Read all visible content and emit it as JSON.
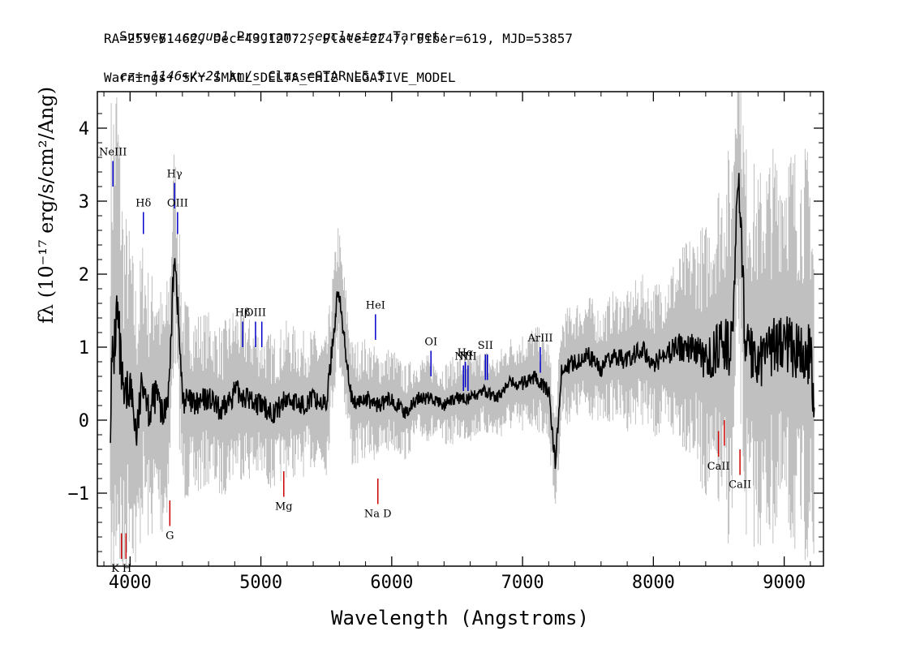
{
  "header": {
    "line1_a": "Survey: ",
    "survey": "segue1",
    "line1_b": " Program: ",
    "program": "segcluster",
    "line1_c": " Target:",
    "line2": "RA=259.61462, Dec=43.12072, Plate=2247, Fiber=619, MJD=53857",
    "cz_label": "cz=",
    "cz_value": "−1146+/−21",
    "line3_rest": " km/s Class=STAR L5.5",
    "line4": "Warnings: SKY SMALL_DELTA_CHI2 NEGATIVE_MODEL"
  },
  "chart_data": {
    "type": "line",
    "xlabel": "Wavelength (Angstroms)",
    "ylabel": "fλ (10⁻¹⁷ erg/s/cm²/Ang)",
    "xlim": [
      3750,
      9300
    ],
    "ylim": [
      -2.0,
      4.5
    ],
    "x_ticks": [
      4000,
      5000,
      6000,
      7000,
      8000,
      9000
    ],
    "y_ticks": [
      -1,
      0,
      1,
      2,
      3,
      4
    ],
    "series": [
      {
        "role": "spectrum",
        "color": "#000000",
        "x": [
          3850,
          3900,
          3950,
          4000,
          4050,
          4100,
          4150,
          4200,
          4250,
          4300,
          4340,
          4400,
          4500,
          4600,
          4700,
          4800,
          4900,
          5000,
          5100,
          5200,
          5300,
          5400,
          5500,
          5590,
          5700,
          5800,
          5900,
          6000,
          6100,
          6200,
          6300,
          6400,
          6500,
          6600,
          6700,
          6800,
          6900,
          7000,
          7100,
          7200,
          7250,
          7300,
          7400,
          7500,
          7600,
          7700,
          7800,
          7900,
          8000,
          8100,
          8200,
          8300,
          8400,
          8500,
          8600,
          8650,
          8700,
          8800,
          8900,
          9000,
          9100,
          9200,
          9230
        ],
        "y": [
          0.3,
          1.5,
          0.2,
          0.5,
          -0.2,
          0.6,
          0.1,
          0.4,
          0.0,
          0.5,
          2.4,
          0.3,
          0.2,
          0.3,
          0.1,
          0.4,
          0.3,
          0.2,
          0.1,
          0.3,
          0.2,
          0.3,
          0.2,
          1.8,
          0.2,
          0.3,
          0.2,
          0.3,
          0.1,
          0.3,
          0.3,
          0.2,
          0.3,
          0.3,
          0.4,
          0.3,
          0.5,
          0.5,
          0.6,
          0.4,
          -0.6,
          0.7,
          0.8,
          0.9,
          0.7,
          0.9,
          0.8,
          1.0,
          0.8,
          0.9,
          1.0,
          1.0,
          0.8,
          1.0,
          1.0,
          3.5,
          1.1,
          0.8,
          1.0,
          1.1,
          0.9,
          0.9,
          0.0
        ]
      },
      {
        "role": "noise_band",
        "color": "#c0c0c0",
        "x": [
          3850,
          4000,
          4200,
          4400,
          4600,
          4800,
          5000,
          5200,
          5400,
          5600,
          5800,
          6000,
          6200,
          6400,
          6600,
          6800,
          7000,
          7200,
          7400,
          7600,
          7800,
          8000,
          8200,
          8400,
          8600,
          8800,
          9000,
          9230
        ],
        "half_width": [
          3.5,
          1.8,
          1.5,
          1.2,
          1.0,
          1.0,
          0.9,
          0.9,
          0.8,
          0.8,
          0.7,
          0.6,
          0.5,
          0.5,
          0.5,
          0.5,
          0.6,
          0.6,
          0.7,
          0.7,
          0.8,
          0.9,
          1.1,
          1.6,
          2.4,
          2.2,
          2.4,
          2.4
        ]
      }
    ],
    "emission_lines": [
      {
        "label": "NeIII",
        "x": 3869,
        "y_top": 3.55,
        "y_bottom": 3.2
      },
      {
        "label": "Hδ",
        "x": 4102,
        "y_top": 2.85,
        "y_bottom": 2.55
      },
      {
        "label": "Hγ",
        "x": 4340,
        "y_top": 3.25,
        "y_bottom": 2.9
      },
      {
        "label": "OIII",
        "x": 4363,
        "y_top": 2.85,
        "y_bottom": 2.55
      },
      {
        "label": "Hβ",
        "x": 4861,
        "y_top": 1.35,
        "y_bottom": 1.0
      },
      {
        "label": "OIII",
        "x": 4959,
        "y_top": 1.35,
        "y_bottom": 1.0
      },
      {
        "label": "",
        "x": 5007,
        "y_top": 1.35,
        "y_bottom": 1.0
      },
      {
        "label": "HeI",
        "x": 5876,
        "y_top": 1.45,
        "y_bottom": 1.1
      },
      {
        "label": "OI",
        "x": 6300,
        "y_top": 0.95,
        "y_bottom": 0.6
      },
      {
        "label": "NII",
        "x": 6548,
        "y_top": 0.75,
        "y_bottom": 0.4
      },
      {
        "label": "Hα",
        "x": 6563,
        "y_top": 0.8,
        "y_bottom": 0.45
      },
      {
        "label": "NII",
        "x": 6583,
        "y_top": 0.75,
        "y_bottom": 0.4
      },
      {
        "label": "SII",
        "x": 6716,
        "y_top": 0.9,
        "y_bottom": 0.55
      },
      {
        "label": "",
        "x": 6731,
        "y_top": 0.9,
        "y_bottom": 0.55
      },
      {
        "label": "ArIII",
        "x": 7136,
        "y_top": 1.0,
        "y_bottom": 0.65
      }
    ],
    "absorption_lines": [
      {
        "label": "K H",
        "x": 3934,
        "y_top": -1.55,
        "y_bottom": -1.9
      },
      {
        "label": "",
        "x": 3969,
        "y_top": -1.55,
        "y_bottom": -1.9
      },
      {
        "label": "G",
        "x": 4304,
        "y_top": -1.1,
        "y_bottom": -1.45
      },
      {
        "label": "Mg",
        "x": 5175,
        "y_top": -0.7,
        "y_bottom": -1.05
      },
      {
        "label": "Na D",
        "x": 5894,
        "y_top": -0.8,
        "y_bottom": -1.15
      },
      {
        "label": "CaII",
        "x": 8498,
        "y_top": -0.15,
        "y_bottom": -0.5
      },
      {
        "label": "",
        "x": 8542,
        "y_top": 0.0,
        "y_bottom": -0.35
      },
      {
        "label": "CaII",
        "x": 8662,
        "y_top": -0.4,
        "y_bottom": -0.75
      }
    ],
    "grid": false,
    "legend": "none"
  },
  "colors": {
    "emission": "#0000cc",
    "absorption": "#cc0000",
    "spectrum": "#000000",
    "noise": "#c0c0c0"
  }
}
